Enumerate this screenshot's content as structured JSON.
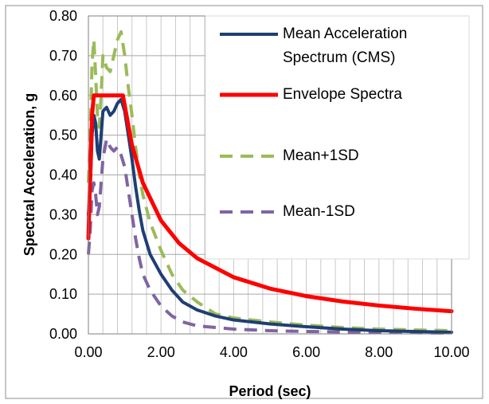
{
  "chart_data": {
    "type": "line",
    "title": "",
    "xlabel": "Period (sec)",
    "ylabel": "Spectral Acceleration, g",
    "xlim": [
      0,
      10
    ],
    "ylim": [
      0,
      0.8
    ],
    "x_ticks": [
      "0.00",
      "2.00",
      "4.00",
      "6.00",
      "8.00",
      "10.00"
    ],
    "y_ticks": [
      "0.00",
      "0.10",
      "0.20",
      "0.30",
      "0.40",
      "0.50",
      "0.60",
      "0.70",
      "0.80"
    ],
    "grid": true,
    "legend_position": "top-right",
    "series": [
      {
        "name": "Mean Acceleration Spectrum (CMS)",
        "legend_lines": [
          "Mean Acceleration",
          "Spectrum (CMS)"
        ],
        "color": "#1f3f73",
        "dash": "solid",
        "points": [
          [
            0.0,
            0.3
          ],
          [
            0.05,
            0.36
          ],
          [
            0.1,
            0.5
          ],
          [
            0.15,
            0.55
          ],
          [
            0.2,
            0.53
          ],
          [
            0.25,
            0.46
          ],
          [
            0.3,
            0.44
          ],
          [
            0.35,
            0.5
          ],
          [
            0.4,
            0.56
          ],
          [
            0.5,
            0.57
          ],
          [
            0.6,
            0.55
          ],
          [
            0.7,
            0.56
          ],
          [
            0.8,
            0.58
          ],
          [
            0.9,
            0.59
          ],
          [
            1.0,
            0.56
          ],
          [
            1.1,
            0.5
          ],
          [
            1.2,
            0.44
          ],
          [
            1.3,
            0.37
          ],
          [
            1.4,
            0.31
          ],
          [
            1.5,
            0.26
          ],
          [
            1.7,
            0.2
          ],
          [
            2.0,
            0.15
          ],
          [
            2.3,
            0.11
          ],
          [
            2.6,
            0.08
          ],
          [
            3.0,
            0.06
          ],
          [
            3.5,
            0.045
          ],
          [
            4.0,
            0.035
          ],
          [
            5.0,
            0.025
          ],
          [
            6.0,
            0.018
          ],
          [
            7.0,
            0.012
          ],
          [
            8.0,
            0.008
          ],
          [
            9.0,
            0.006
          ],
          [
            10.0,
            0.004
          ]
        ]
      },
      {
        "name": "Envelope Spectra",
        "legend_lines": [
          "Envelope Spectra"
        ],
        "color": "#ff0000",
        "dash": "solid",
        "points": [
          [
            0.0,
            0.24
          ],
          [
            0.05,
            0.4
          ],
          [
            0.1,
            0.55
          ],
          [
            0.15,
            0.6
          ],
          [
            0.95,
            0.6
          ],
          [
            1.2,
            0.475
          ],
          [
            1.5,
            0.38
          ],
          [
            2.0,
            0.285
          ],
          [
            2.5,
            0.228
          ],
          [
            3.0,
            0.19
          ],
          [
            4.0,
            0.1425
          ],
          [
            5.0,
            0.114
          ],
          [
            6.0,
            0.095
          ],
          [
            7.0,
            0.0814
          ],
          [
            8.0,
            0.0713
          ],
          [
            9.0,
            0.0633
          ],
          [
            10.0,
            0.057
          ]
        ]
      },
      {
        "name": "Mean+1SD",
        "legend_lines": [
          "Mean+1SD"
        ],
        "color": "#9bbb59",
        "dash": "dashed",
        "points": [
          [
            0.0,
            0.38
          ],
          [
            0.05,
            0.5
          ],
          [
            0.1,
            0.68
          ],
          [
            0.15,
            0.74
          ],
          [
            0.2,
            0.65
          ],
          [
            0.25,
            0.55
          ],
          [
            0.3,
            0.52
          ],
          [
            0.35,
            0.6
          ],
          [
            0.4,
            0.7
          ],
          [
            0.5,
            0.67
          ],
          [
            0.6,
            0.66
          ],
          [
            0.7,
            0.7
          ],
          [
            0.8,
            0.74
          ],
          [
            0.9,
            0.76
          ],
          [
            1.0,
            0.7
          ],
          [
            1.1,
            0.62
          ],
          [
            1.2,
            0.55
          ],
          [
            1.3,
            0.47
          ],
          [
            1.4,
            0.4
          ],
          [
            1.5,
            0.35
          ],
          [
            1.7,
            0.28
          ],
          [
            2.0,
            0.21
          ],
          [
            2.3,
            0.15
          ],
          [
            2.6,
            0.11
          ],
          [
            3.0,
            0.08
          ],
          [
            3.5,
            0.05
          ],
          [
            4.0,
            0.04
          ],
          [
            5.0,
            0.03
          ],
          [
            6.0,
            0.022
          ],
          [
            7.0,
            0.016
          ],
          [
            8.0,
            0.012
          ],
          [
            9.0,
            0.01
          ],
          [
            10.0,
            0.008
          ]
        ]
      },
      {
        "name": "Mean-1SD",
        "legend_lines": [
          "Mean-1SD"
        ],
        "color": "#8064a2",
        "dash": "dashed",
        "points": [
          [
            0.0,
            0.2
          ],
          [
            0.05,
            0.26
          ],
          [
            0.1,
            0.36
          ],
          [
            0.15,
            0.38
          ],
          [
            0.2,
            0.35
          ],
          [
            0.25,
            0.3
          ],
          [
            0.3,
            0.32
          ],
          [
            0.35,
            0.38
          ],
          [
            0.4,
            0.44
          ],
          [
            0.5,
            0.49
          ],
          [
            0.6,
            0.47
          ],
          [
            0.7,
            0.46
          ],
          [
            0.8,
            0.47
          ],
          [
            0.9,
            0.45
          ],
          [
            1.0,
            0.42
          ],
          [
            1.1,
            0.36
          ],
          [
            1.2,
            0.3
          ],
          [
            1.3,
            0.24
          ],
          [
            1.4,
            0.19
          ],
          [
            1.5,
            0.15
          ],
          [
            1.7,
            0.11
          ],
          [
            2.0,
            0.07
          ],
          [
            2.3,
            0.045
          ],
          [
            2.6,
            0.03
          ],
          [
            3.0,
            0.02
          ],
          [
            4.0,
            0.012
          ],
          [
            5.0,
            0.008
          ],
          [
            6.0,
            0.006
          ],
          [
            7.0,
            0.005
          ],
          [
            8.0,
            0.004
          ],
          [
            9.0,
            0.003
          ],
          [
            10.0,
            0.002
          ]
        ]
      }
    ]
  }
}
